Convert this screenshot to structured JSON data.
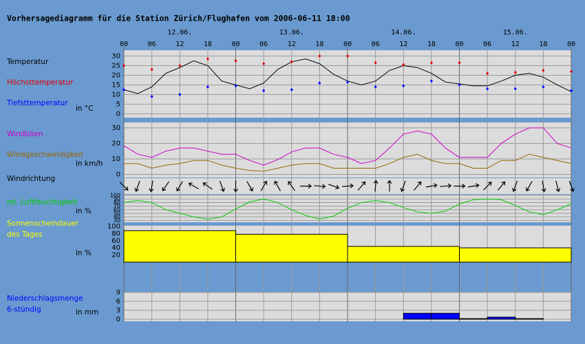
{
  "header": {
    "title": "Vorhersagediagramm für die Station Zürich/Flughafen vom 2006-06-11 18:00"
  },
  "time_axis": {
    "days": [
      "12.06.",
      "13.06.",
      "14.06.",
      "15.06."
    ],
    "hours": [
      "00",
      "06",
      "12",
      "18",
      "00",
      "06",
      "12",
      "18",
      "00",
      "06",
      "12",
      "18",
      "00",
      "06",
      "12",
      "18",
      "00"
    ]
  },
  "chart_data": [
    {
      "type": "line",
      "unit": "in °C",
      "ylim": [
        -2,
        33
      ],
      "yticks": [
        0,
        5,
        10,
        15,
        20,
        25,
        30
      ],
      "grid": true,
      "series": [
        {
          "name": "Temperatur",
          "color": "#000000",
          "values": [
            12.5,
            10.5,
            14,
            21,
            24,
            27.5,
            25,
            17,
            15,
            13,
            16,
            23,
            27,
            28.5,
            26,
            20.5,
            17,
            15,
            17,
            22.5,
            25,
            24,
            21,
            16.5,
            15.5,
            14.5,
            14.5,
            17,
            20,
            21,
            19,
            15,
            11.5
          ]
        },
        {
          "name": "Höchsttemperatur",
          "color": "#dd0000",
          "marker": "diamond",
          "values": [
            25,
            23,
            25,
            28.5,
            27.5,
            26,
            27,
            30,
            30,
            26.5,
            25.5,
            26.5,
            26.5,
            21,
            21.5,
            22.5,
            22
          ]
        },
        {
          "name": "Tiefsttemperatur",
          "color": "#0000ff",
          "marker": "diamond",
          "values": [
            12.5,
            9,
            10,
            14,
            14.5,
            12,
            12.5,
            16,
            16.5,
            14,
            14.5,
            17,
            15,
            13,
            13,
            14,
            12
          ]
        }
      ]
    },
    {
      "type": "line",
      "unit": "in km/h",
      "ylim": [
        -2,
        33.5
      ],
      "yticks": [
        0,
        10,
        20,
        30
      ],
      "grid": true,
      "series": [
        {
          "name": "Windböen",
          "color": "#cc00cc",
          "values": [
            18.5,
            13,
            11,
            15,
            17,
            17,
            15,
            13,
            13,
            9,
            6,
            9.5,
            14.5,
            17,
            17,
            13,
            11,
            7,
            9,
            17,
            26,
            28,
            26,
            17,
            11,
            11,
            11,
            20,
            26,
            30,
            30,
            20,
            17
          ]
        },
        {
          "name": "Windgeschwindigkeit",
          "color": "#996600",
          "values": [
            7,
            7,
            4,
            6,
            7,
            9,
            9,
            6,
            4,
            2.5,
            2,
            4,
            6,
            7,
            7,
            4,
            4,
            4,
            4,
            7,
            11,
            13,
            9,
            7,
            7,
            4,
            4,
            9,
            9,
            13,
            11,
            9,
            7
          ]
        }
      ]
    },
    {
      "type": "arrows",
      "series": [
        {
          "name": "Windrichtung",
          "color": "#000000",
          "values": [
            135,
            200,
            190,
            215,
            210,
            300,
            305,
            160,
            180,
            150,
            30,
            330,
            325,
            90,
            95,
            110,
            85,
            40,
            5,
            0,
            200,
            40,
            80,
            85,
            90,
            80,
            45,
            40,
            200,
            210,
            170,
            165,
            160
          ]
        }
      ]
    },
    {
      "type": "line",
      "unit": "in %",
      "ylim": [
        25,
        102
      ],
      "yticks": [
        30,
        40,
        50,
        60,
        70,
        80,
        90,
        100
      ],
      "grid": true,
      "series": [
        {
          "name": "rel. Luftfeuchtigkeit",
          "color": "#00cc00",
          "values": [
            80,
            86,
            80,
            60,
            50,
            40,
            34,
            40,
            62,
            82,
            90,
            80,
            60,
            44,
            34,
            42,
            64,
            80,
            86,
            80,
            66,
            54,
            50,
            56,
            76,
            88,
            90,
            88,
            72,
            54,
            46,
            60,
            76
          ]
        }
      ]
    },
    {
      "type": "bar",
      "unit": "in %",
      "ylim": [
        0,
        102
      ],
      "yticks": [
        20,
        40,
        60,
        80,
        100
      ],
      "grid": false,
      "series": [
        {
          "name": "Sonnenscheindauer\ndes Tages",
          "color": "#ffff00",
          "values": [
            88,
            78,
            44,
            40
          ]
        }
      ]
    },
    {
      "type": "bar",
      "unit": "in mm",
      "ylim": [
        -0.7,
        9
      ],
      "yticks": [
        0,
        3,
        6,
        9
      ],
      "grid": true,
      "series": [
        {
          "name": "Niederschlagsmenge\n6-stündig",
          "color": "#0000ff",
          "values": [
            0,
            0,
            0,
            0,
            0,
            0,
            0,
            0,
            0,
            0,
            2,
            2,
            0.2,
            0.7,
            0.2,
            0
          ]
        }
      ]
    }
  ]
}
